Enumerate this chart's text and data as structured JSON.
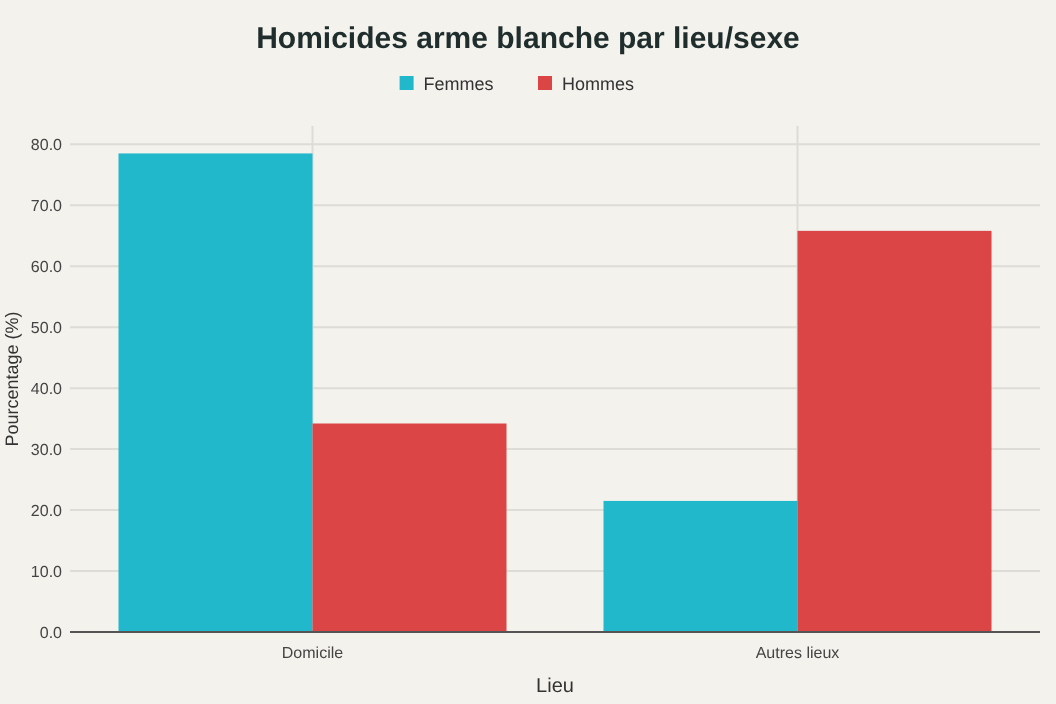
{
  "chart_data": {
    "type": "bar",
    "title": "Homicides arme blanche par lieu/sexe",
    "xlabel": "Lieu",
    "ylabel": "Pourcentage (%)",
    "categories": [
      "Domicile",
      "Autres lieux"
    ],
    "series": [
      {
        "name": "Femmes",
        "color": "#21b8cc",
        "values": [
          78.5,
          21.5
        ]
      },
      {
        "name": "Hommes",
        "color": "#db4545",
        "values": [
          34.2,
          65.8
        ]
      }
    ],
    "ylim": [
      0,
      83
    ],
    "yticks": [
      {
        "value": 0,
        "label": "0.0"
      },
      {
        "value": 10,
        "label": "10.0"
      },
      {
        "value": 20,
        "label": "20.0"
      },
      {
        "value": 30,
        "label": "30.0"
      },
      {
        "value": 40,
        "label": "40.0"
      },
      {
        "value": 50,
        "label": "50.0"
      },
      {
        "value": 60,
        "label": "60.0"
      },
      {
        "value": 70,
        "label": "70.0"
      },
      {
        "value": 80,
        "label": "80.0"
      }
    ],
    "grid": true,
    "legend": "top"
  }
}
